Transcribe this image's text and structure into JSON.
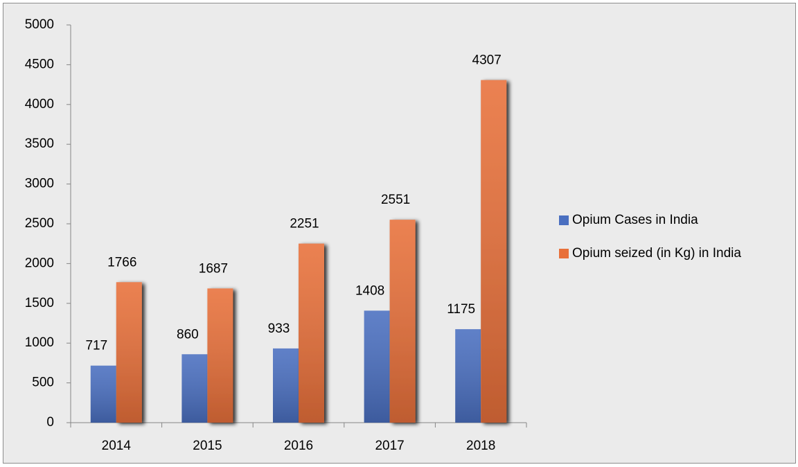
{
  "chart_data": {
    "type": "bar",
    "categories": [
      "2014",
      "2015",
      "2016",
      "2017",
      "2018"
    ],
    "series": [
      {
        "name": "Opium Cases in India",
        "color": "#4a6fc0",
        "values": [
          717,
          860,
          933,
          1408,
          1175
        ]
      },
      {
        "name": "Opium seized (in Kg) in India",
        "color": "#e8703a",
        "values": [
          1766,
          1687,
          2251,
          2551,
          4307
        ]
      }
    ],
    "ylim": [
      0,
      5000
    ],
    "yticks": [
      0,
      500,
      1000,
      1500,
      2000,
      2500,
      3000,
      3500,
      4000,
      4500,
      5000
    ],
    "legend": "right"
  }
}
